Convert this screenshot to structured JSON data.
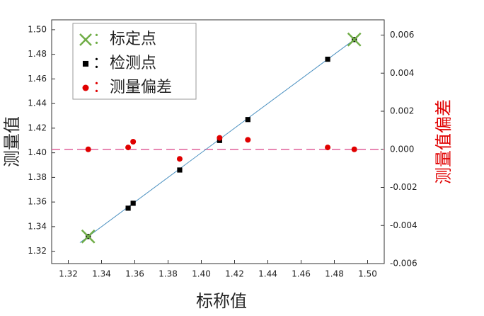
{
  "chart_data": {
    "type": "scatter",
    "xlabel": "标称值",
    "ylabel": "测量值",
    "y2label": "测量值偏差",
    "y2label_color": "#e00000",
    "xlim": [
      1.31,
      1.51
    ],
    "ylim": [
      1.31,
      1.508
    ],
    "y2lim": [
      -0.006,
      0.0068
    ],
    "xticks": [
      1.32,
      1.34,
      1.36,
      1.38,
      {
        "value": 1.4,
        "label": "1.40"
      },
      1.42,
      1.44,
      1.46,
      1.48,
      {
        "value": 1.5,
        "label": "1.50"
      }
    ],
    "yticks": [
      1.32,
      1.34,
      1.36,
      1.38,
      {
        "value": 1.4,
        "label": "1.40"
      },
      1.42,
      1.44,
      1.46,
      1.48,
      {
        "value": 1.5,
        "label": "1.50"
      }
    ],
    "y2ticks": [
      -0.006,
      -0.004,
      -0.002,
      {
        "value": 0,
        "label": "0.000"
      },
      0.002,
      0.004,
      0.006
    ],
    "legend_separator": "：",
    "series": [
      {
        "name": "标定点",
        "marker": "x",
        "color": "#70ad47",
        "x": [
          1.332,
          1.492
        ],
        "values": [
          1.332,
          1.492
        ]
      },
      {
        "name": "检测点",
        "marker": "square",
        "color": "#000000",
        "x": [
          1.332,
          1.356,
          1.359,
          1.387,
          1.411,
          1.428,
          1.476,
          1.492
        ],
        "values": [
          1.332,
          1.355,
          1.359,
          1.386,
          1.41,
          1.427,
          1.476,
          1.492
        ]
      },
      {
        "name": "测量偏差",
        "marker": "circle",
        "color": "#e00000",
        "axis": "y2",
        "x": [
          1.332,
          1.356,
          1.359,
          1.387,
          1.411,
          1.428,
          1.476,
          1.492
        ],
        "values": [
          0.0,
          0.0001,
          0.0004,
          -0.0005,
          0.0006,
          0.0005,
          0.0001,
          0.0
        ]
      }
    ],
    "fit_line": {
      "color": "#4a90c0",
      "x": [
        1.327,
        1.492
      ],
      "values": [
        1.327,
        1.492
      ]
    },
    "reference_line": {
      "axis": "y2",
      "value": 0,
      "color": "#e0609a",
      "dashed": true
    }
  }
}
